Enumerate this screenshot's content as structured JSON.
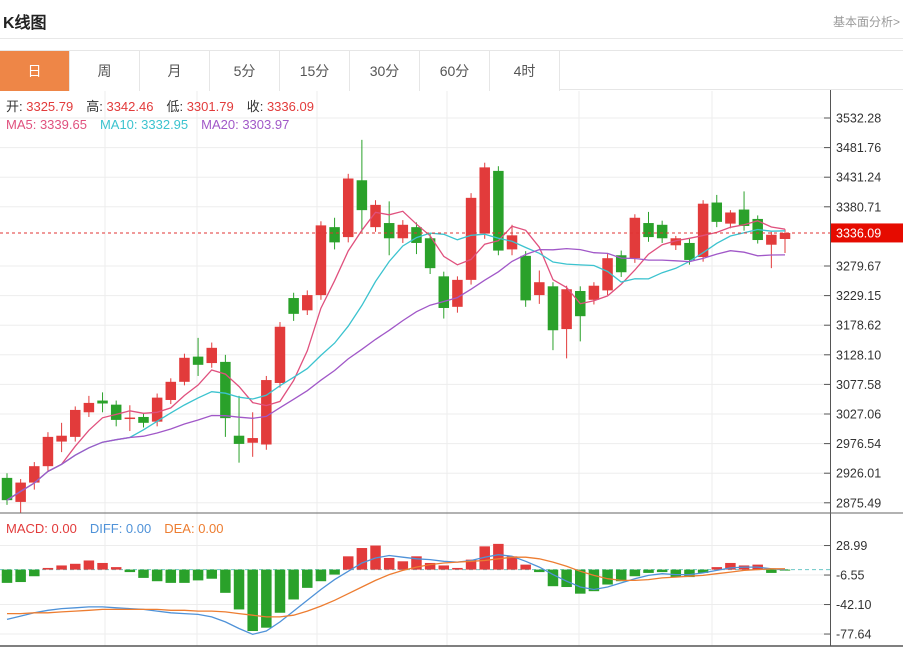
{
  "header": {
    "title": "K线图",
    "link": "基本面分析>"
  },
  "tabs": {
    "items": [
      {
        "label": "日",
        "active": true
      },
      {
        "label": "周",
        "active": false
      },
      {
        "label": "月",
        "active": false
      },
      {
        "label": "5分",
        "active": false
      },
      {
        "label": "15分",
        "active": false
      },
      {
        "label": "30分",
        "active": false
      },
      {
        "label": "60分",
        "active": false
      },
      {
        "label": "4时",
        "active": false
      }
    ]
  },
  "info": {
    "ohlc": [
      {
        "label": "开:",
        "value": "3325.79"
      },
      {
        "label": "高:",
        "value": "3342.46"
      },
      {
        "label": "低:",
        "value": "3301.79"
      },
      {
        "label": "收:",
        "value": "3336.09"
      }
    ],
    "ma": [
      {
        "label": "MA5:",
        "value": "3339.65",
        "color": "#e0517e"
      },
      {
        "label": "MA10:",
        "value": "3332.95",
        "color": "#3cc3cf"
      },
      {
        "label": "MA20:",
        "value": "3303.97",
        "color": "#a158c8"
      }
    ]
  },
  "macd_header": [
    {
      "label": "MACD:",
      "value": "0.00",
      "color": "#e23b3b"
    },
    {
      "label": "DIFF:",
      "value": "0.00",
      "color": "#4f92d8"
    },
    {
      "label": "DEA:",
      "value": "0.00",
      "color": "#ed7d31"
    }
  ],
  "colors": {
    "up": "#e23b3b",
    "down": "#2aa12a",
    "ma5": "#e0517e",
    "ma10": "#3cc3cf",
    "ma20": "#a158c8",
    "diff": "#4f92d8",
    "dea": "#ed7d31",
    "tab_active": "#ee8647",
    "price_badge": "#e60b00",
    "dotted_line": "#e03333",
    "zero_line": "#6cc8c8",
    "grid": "#ededed",
    "axis": "#555555"
  },
  "chart_data": {
    "type": "candlestick+macd",
    "main": {
      "current_price": "3336.09",
      "y_ticks": [
        "3532.28",
        "3481.76",
        "3431.24",
        "3380.71",
        "3279.67",
        "3229.15",
        "3178.62",
        "3128.10",
        "3077.58",
        "3027.06",
        "2976.54",
        "2926.01",
        "2875.49"
      ],
      "candles_format": [
        "open",
        "high",
        "low",
        "close"
      ],
      "candles": [
        [
          2918,
          2926,
          2872,
          2880
        ],
        [
          2877,
          2916,
          2858,
          2910
        ],
        [
          2910,
          2945,
          2898,
          2938
        ],
        [
          2938,
          2996,
          2928,
          2988
        ],
        [
          2980,
          3012,
          2962,
          2990
        ],
        [
          2988,
          3040,
          2980,
          3034
        ],
        [
          3030,
          3058,
          3022,
          3046
        ],
        [
          3050,
          3064,
          3030,
          3045
        ],
        [
          3043,
          3050,
          3006,
          3017
        ],
        [
          3020,
          3042,
          2998,
          3021
        ],
        [
          3022,
          3028,
          3004,
          3012
        ],
        [
          3014,
          3062,
          3006,
          3055
        ],
        [
          3051,
          3088,
          3044,
          3082
        ],
        [
          3082,
          3130,
          3076,
          3123
        ],
        [
          3125,
          3157,
          3092,
          3111
        ],
        [
          3114,
          3149,
          3106,
          3140
        ],
        [
          3116,
          3128,
          2988,
          3020
        ],
        [
          2990,
          3058,
          2944,
          2976
        ],
        [
          2978,
          3030,
          2954,
          2986
        ],
        [
          2975,
          3092,
          2966,
          3085
        ],
        [
          3080,
          3184,
          3072,
          3176
        ],
        [
          3225,
          3234,
          3186,
          3198
        ],
        [
          3204,
          3238,
          3196,
          3230
        ],
        [
          3230,
          3356,
          3222,
          3349
        ],
        [
          3346,
          3362,
          3308,
          3320
        ],
        [
          3329,
          3437,
          3320,
          3429
        ],
        [
          3426,
          3495,
          3338,
          3375
        ],
        [
          3346,
          3392,
          3338,
          3384
        ],
        [
          3353,
          3390,
          3298,
          3327
        ],
        [
          3327,
          3358,
          3319,
          3350
        ],
        [
          3346,
          3354,
          3300,
          3319
        ],
        [
          3327,
          3335,
          3266,
          3276
        ],
        [
          3262,
          3270,
          3190,
          3208
        ],
        [
          3210,
          3262,
          3200,
          3256
        ],
        [
          3256,
          3404,
          3248,
          3396
        ],
        [
          3335,
          3456,
          3326,
          3448
        ],
        [
          3442,
          3450,
          3298,
          3306
        ],
        [
          3308,
          3350,
          3298,
          3332
        ],
        [
          3297,
          3305,
          3210,
          3221
        ],
        [
          3230,
          3272,
          3215,
          3252
        ],
        [
          3245,
          3252,
          3136,
          3170
        ],
        [
          3172,
          3246,
          3122,
          3240
        ],
        [
          3237,
          3245,
          3151,
          3194
        ],
        [
          3222,
          3252,
          3214,
          3246
        ],
        [
          3238,
          3300,
          3230,
          3293
        ],
        [
          3298,
          3306,
          3261,
          3269
        ],
        [
          3293,
          3368,
          3285,
          3362
        ],
        [
          3353,
          3372,
          3321,
          3329
        ],
        [
          3350,
          3357,
          3319,
          3327
        ],
        [
          3315,
          3331,
          3307,
          3327
        ],
        [
          3319,
          3326,
          3282,
          3290
        ],
        [
          3295,
          3392,
          3287,
          3386
        ],
        [
          3388,
          3401,
          3346,
          3355
        ],
        [
          3352,
          3375,
          3344,
          3371
        ],
        [
          3376,
          3407,
          3340,
          3348
        ],
        [
          3360,
          3366,
          3318,
          3324
        ],
        [
          3316,
          3338,
          3276,
          3333
        ],
        [
          3325.79,
          3342.46,
          3301.79,
          3336.09
        ]
      ],
      "ma_windows": [
        5,
        10,
        20
      ]
    },
    "macd": {
      "y_ticks": [
        "28.99",
        "-6.55",
        "-42.10",
        "-77.64"
      ],
      "hist": [
        -16,
        -15,
        -8,
        2,
        5,
        7,
        11,
        8,
        3,
        -3,
        -10,
        -14,
        -16,
        -16,
        -13,
        -11,
        -28,
        -48,
        -74,
        -70,
        -52,
        -36,
        -22,
        -14,
        -6,
        16,
        26,
        29,
        14,
        10,
        16,
        8,
        5,
        2,
        12,
        28,
        31,
        16,
        6,
        -3,
        -20,
        -21,
        -29,
        -26,
        -18,
        -14,
        -8,
        -4,
        -3,
        -9,
        -9,
        -4,
        3,
        8,
        5,
        6,
        -4,
        -1
      ],
      "diff": [
        -60,
        -56,
        -52,
        -49,
        -47,
        -46,
        -45,
        -45,
        -46,
        -47,
        -48,
        -50,
        -52,
        -53,
        -54,
        -57,
        -63,
        -71,
        -78,
        -74,
        -63,
        -50,
        -37,
        -24,
        -12,
        -2,
        8,
        14,
        17,
        15,
        13,
        12,
        10,
        9,
        11,
        15,
        18,
        16,
        10,
        3,
        -6,
        -14,
        -21,
        -24,
        -21,
        -16,
        -11,
        -7,
        -5,
        -6,
        -6,
        -4,
        -1,
        2,
        3,
        3,
        1,
        0
      ],
      "dea": [
        -53,
        -53,
        -52,
        -52,
        -51,
        -50,
        -49,
        -48,
        -48,
        -48,
        -48,
        -48,
        -49,
        -49,
        -50,
        -50,
        -51,
        -53,
        -55,
        -57,
        -57,
        -55,
        -50,
        -44,
        -37,
        -29,
        -21,
        -13,
        -6,
        -1,
        3,
        6,
        8,
        9,
        10,
        11,
        13,
        15,
        15,
        13,
        9,
        4,
        -2,
        -7,
        -11,
        -13,
        -13,
        -12,
        -10,
        -9,
        -8,
        -7,
        -5,
        -3,
        -1,
        0,
        1,
        1
      ]
    }
  }
}
